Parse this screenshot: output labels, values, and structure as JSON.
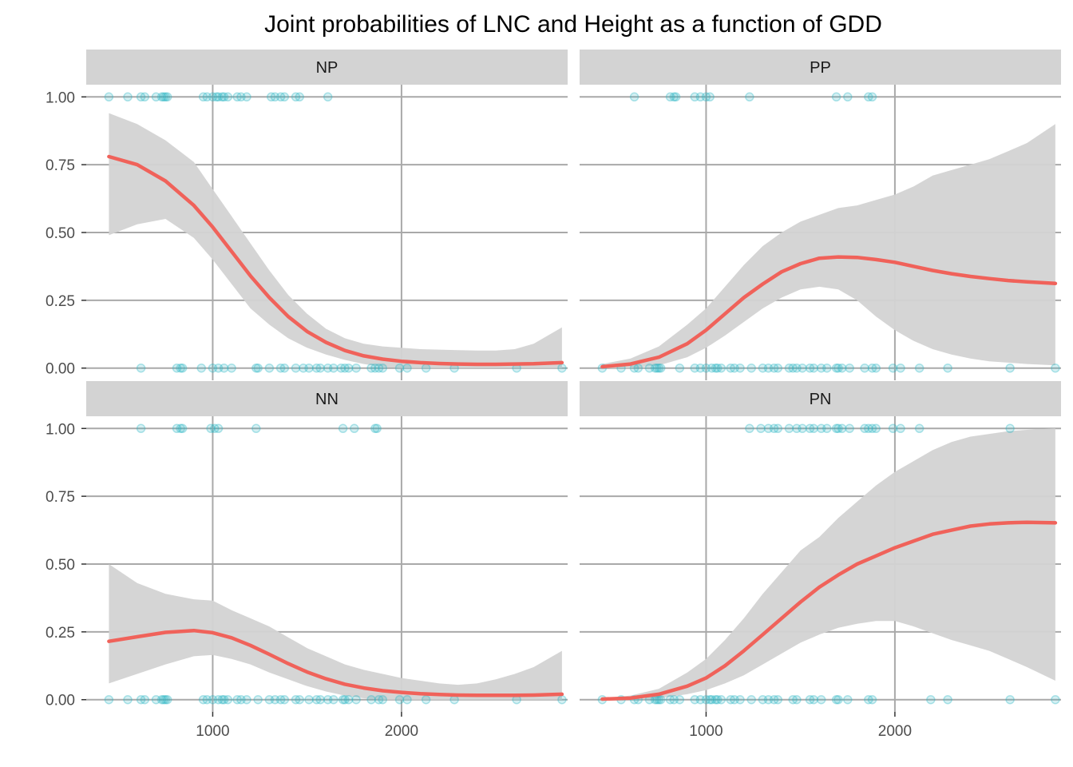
{
  "chart_data": {
    "type": "line",
    "title": "Joint probabilities of LNC and Height as a function of GDD",
    "xlabel": "",
    "ylabel": "",
    "xlim": [
      330,
      2880
    ],
    "ylim": [
      -0.045,
      1.045
    ],
    "x_ticks": [
      1000,
      2000
    ],
    "x_tick_labels": [
      "1000",
      "2000"
    ],
    "y_ticks": [
      0,
      0.25,
      0.5,
      0.75,
      1
    ],
    "y_tick_labels": [
      "0.00",
      "0.25",
      "0.50",
      "0.75",
      "1.00"
    ],
    "grid": true,
    "legend": "none",
    "colors": {
      "line": "#f0625a",
      "points": "#26b5c2",
      "ribbon": "#d3d3d3",
      "strip": "#d3d3d3",
      "grid": "#a9a9a9"
    },
    "panels": [
      {
        "label": "NP",
        "fit_x": [
          450,
          600,
          750,
          900,
          1000,
          1100,
          1200,
          1300,
          1400,
          1500,
          1600,
          1700,
          1800,
          1900,
          2000,
          2100,
          2200,
          2300,
          2400,
          2500,
          2600,
          2700,
          2850
        ],
        "fit_y": [
          0.78,
          0.75,
          0.69,
          0.6,
          0.52,
          0.43,
          0.34,
          0.26,
          0.19,
          0.135,
          0.095,
          0.065,
          0.045,
          0.033,
          0.025,
          0.02,
          0.017,
          0.015,
          0.014,
          0.014,
          0.015,
          0.016,
          0.02
        ],
        "ci_upper": [
          0.94,
          0.9,
          0.84,
          0.76,
          0.66,
          0.56,
          0.46,
          0.36,
          0.27,
          0.2,
          0.145,
          0.11,
          0.09,
          0.08,
          0.075,
          0.07,
          0.068,
          0.066,
          0.065,
          0.065,
          0.07,
          0.09,
          0.15
        ],
        "ci_lower": [
          0.49,
          0.53,
          0.55,
          0.48,
          0.4,
          0.31,
          0.22,
          0.16,
          0.11,
          0.075,
          0.05,
          0.03,
          0.015,
          0.005,
          0.0,
          0.0,
          0.0,
          0.0,
          0.0,
          0.0,
          0.0,
          0.0,
          0.0
        ],
        "points_y1": [
          450,
          550,
          620,
          640,
          700,
          730,
          740,
          750,
          760,
          950,
          970,
          1000,
          1020,
          1030,
          1050,
          1060,
          1080,
          1130,
          1150,
          1180,
          1310,
          1330,
          1360,
          1380,
          1440,
          1460,
          1610
        ],
        "points_y0": [
          620,
          810,
          830,
          840,
          940,
          1000,
          1030,
          1060,
          1100,
          1230,
          1240,
          1300,
          1360,
          1380,
          1440,
          1480,
          1510,
          1550,
          1570,
          1610,
          1640,
          1680,
          1700,
          1720,
          1760,
          1840,
          1860,
          1880,
          1900,
          1990,
          2030,
          2130,
          2280,
          2610,
          2850
        ]
      },
      {
        "label": "PP",
        "fit_x": [
          450,
          600,
          750,
          900,
          1000,
          1100,
          1200,
          1300,
          1400,
          1500,
          1600,
          1700,
          1800,
          1900,
          2000,
          2100,
          2200,
          2300,
          2400,
          2500,
          2600,
          2700,
          2850
        ],
        "fit_y": [
          0.005,
          0.015,
          0.04,
          0.09,
          0.14,
          0.2,
          0.26,
          0.31,
          0.355,
          0.385,
          0.405,
          0.41,
          0.408,
          0.4,
          0.39,
          0.375,
          0.36,
          0.348,
          0.338,
          0.33,
          0.323,
          0.318,
          0.312
        ],
        "ci_upper": [
          0.015,
          0.035,
          0.08,
          0.16,
          0.22,
          0.3,
          0.38,
          0.45,
          0.5,
          0.54,
          0.565,
          0.59,
          0.6,
          0.62,
          0.64,
          0.67,
          0.71,
          0.73,
          0.75,
          0.77,
          0.8,
          0.83,
          0.9
        ],
        "ci_lower": [
          0.0,
          0.0,
          0.01,
          0.04,
          0.075,
          0.12,
          0.17,
          0.22,
          0.26,
          0.29,
          0.3,
          0.29,
          0.25,
          0.19,
          0.14,
          0.1,
          0.07,
          0.05,
          0.035,
          0.025,
          0.02,
          0.015,
          0.01
        ],
        "points_y1": [
          620,
          810,
          830,
          840,
          940,
          970,
          1000,
          1020,
          1230,
          1690,
          1750,
          1860,
          1880
        ],
        "points_y0": [
          450,
          550,
          620,
          640,
          700,
          730,
          740,
          750,
          760,
          860,
          940,
          970,
          1000,
          1030,
          1050,
          1060,
          1080,
          1130,
          1150,
          1180,
          1240,
          1300,
          1330,
          1360,
          1380,
          1440,
          1460,
          1480,
          1510,
          1550,
          1570,
          1610,
          1640,
          1690,
          1700,
          1720,
          1760,
          1840,
          1880,
          1900,
          1990,
          2030,
          2130,
          2280,
          2610,
          2850
        ]
      },
      {
        "label": "NN",
        "fit_x": [
          450,
          600,
          750,
          900,
          1000,
          1100,
          1200,
          1300,
          1400,
          1500,
          1600,
          1700,
          1800,
          1900,
          2000,
          2100,
          2200,
          2300,
          2400,
          2500,
          2600,
          2700,
          2850
        ],
        "fit_y": [
          0.215,
          0.232,
          0.248,
          0.255,
          0.247,
          0.228,
          0.2,
          0.167,
          0.133,
          0.102,
          0.077,
          0.057,
          0.043,
          0.033,
          0.027,
          0.022,
          0.019,
          0.017,
          0.016,
          0.016,
          0.016,
          0.017,
          0.02
        ],
        "ci_upper": [
          0.5,
          0.43,
          0.39,
          0.37,
          0.365,
          0.33,
          0.3,
          0.27,
          0.23,
          0.19,
          0.16,
          0.13,
          0.11,
          0.095,
          0.08,
          0.07,
          0.06,
          0.055,
          0.06,
          0.075,
          0.095,
          0.12,
          0.18
        ],
        "ci_lower": [
          0.06,
          0.095,
          0.13,
          0.16,
          0.165,
          0.15,
          0.13,
          0.1,
          0.075,
          0.05,
          0.03,
          0.015,
          0.005,
          0.0,
          0.0,
          0.0,
          0.0,
          0.0,
          0.0,
          0.0,
          0.0,
          0.0,
          0.0
        ],
        "points_y1": [
          620,
          810,
          830,
          840,
          990,
          1010,
          1030,
          1230,
          1690,
          1750,
          1860,
          1870
        ],
        "points_y0": [
          450,
          550,
          620,
          640,
          700,
          730,
          740,
          750,
          760,
          950,
          970,
          1000,
          1030,
          1050,
          1060,
          1080,
          1130,
          1150,
          1180,
          1240,
          1300,
          1330,
          1360,
          1380,
          1440,
          1460,
          1510,
          1550,
          1570,
          1610,
          1640,
          1690,
          1700,
          1720,
          1760,
          1840,
          1880,
          1900,
          1990,
          2030,
          2130,
          2280,
          2610,
          2850
        ]
      },
      {
        "label": "PN",
        "fit_x": [
          450,
          600,
          750,
          900,
          1000,
          1100,
          1200,
          1300,
          1400,
          1500,
          1600,
          1700,
          1800,
          1900,
          2000,
          2100,
          2200,
          2300,
          2400,
          2500,
          2600,
          2700,
          2850
        ],
        "fit_y": [
          0.002,
          0.006,
          0.02,
          0.05,
          0.08,
          0.125,
          0.18,
          0.24,
          0.3,
          0.36,
          0.415,
          0.46,
          0.5,
          0.53,
          0.56,
          0.585,
          0.61,
          0.625,
          0.64,
          0.648,
          0.652,
          0.654,
          0.652
        ],
        "ci_upper": [
          0.005,
          0.015,
          0.04,
          0.1,
          0.15,
          0.22,
          0.3,
          0.39,
          0.47,
          0.55,
          0.6,
          0.67,
          0.73,
          0.79,
          0.84,
          0.88,
          0.92,
          0.95,
          0.97,
          0.98,
          0.99,
          0.995,
          1.0
        ],
        "ci_lower": [
          0.0,
          0.0,
          0.005,
          0.02,
          0.035,
          0.06,
          0.09,
          0.13,
          0.17,
          0.21,
          0.24,
          0.265,
          0.28,
          0.29,
          0.29,
          0.27,
          0.245,
          0.22,
          0.2,
          0.18,
          0.15,
          0.12,
          0.07
        ],
        "points_y1": [
          1230,
          1290,
          1330,
          1360,
          1380,
          1440,
          1480,
          1510,
          1550,
          1570,
          1610,
          1640,
          1690,
          1700,
          1720,
          1760,
          1840,
          1860,
          1880,
          1900,
          1990,
          2030,
          2130,
          2610
        ],
        "points_y0": [
          450,
          550,
          620,
          640,
          700,
          730,
          740,
          750,
          760,
          810,
          830,
          860,
          940,
          970,
          1000,
          1020,
          1030,
          1050,
          1060,
          1080,
          1130,
          1150,
          1180,
          1240,
          1300,
          1330,
          1360,
          1380,
          1460,
          1480,
          1550,
          1570,
          1610,
          1690,
          1700,
          1750,
          1860,
          1880,
          2190,
          2280,
          2610,
          2850
        ]
      }
    ]
  }
}
